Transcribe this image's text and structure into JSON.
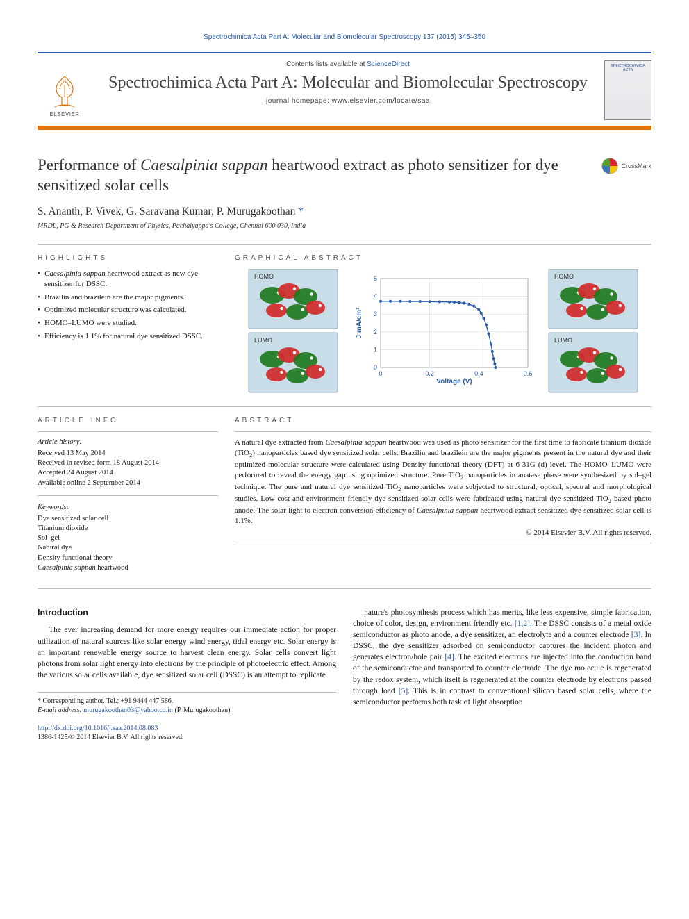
{
  "running_head": "Spectrochimica Acta Part A: Molecular and Biomolecular Spectroscopy 137 (2015) 345–350",
  "masthead": {
    "contents_prefix": "Contents lists available at ",
    "contents_link": "ScienceDirect",
    "journal_name": "Spectrochimica Acta Part A: Molecular and Biomolecular Spectroscopy",
    "homepage_label": "journal homepage: www.elsevier.com/locate/saa",
    "publisher_word": "ELSEVIER",
    "cover_label": "SPECTROCHIMICA ACTA"
  },
  "title_html": "Performance of <em>Caesalpinia sappan</em> heartwood extract as photo sensitizer for dye sensitized solar cells",
  "crossmark_label": "CrossMark",
  "authors_html": "S. Ananth, P. Vivek, G. Saravana Kumar, P. Murugakoothan <a href=\"#\">*</a>",
  "affiliation": "MRDL, PG & Research Department of Physics, Pachaiyappa's College, Chennai 600 030, India",
  "labels": {
    "highlights": "HIGHLIGHTS",
    "graphical_abstract": "GRAPHICAL ABSTRACT",
    "article_info": "ARTICLE INFO",
    "abstract": "ABSTRACT"
  },
  "highlights": [
    "<em>Caesalpinia sappan</em> heartwood extract as new dye sensitizer for DSSC.",
    "Brazilin and brazilein are the major pigments.",
    "Optimized molecular structure was calculated.",
    "HOMO–LUMO were studied.",
    "Efficiency is 1.1% for natural dye sensitized DSSC."
  ],
  "article_info": {
    "history_head": "Article history:",
    "received": "Received 13 May 2014",
    "revised": "Received in revised form 18 August 2014",
    "accepted": "Accepted 24 August 2014",
    "online": "Available online 2 September 2014",
    "keywords_head": "Keywords:",
    "keywords": [
      "Dye sensitized solar cell",
      "Titanium dioxide",
      "Sol–gel",
      "Natural dye",
      "Density functional theory",
      "<em>Caesalpinia sappan</em> heartwood"
    ]
  },
  "abstract_html": "A natural dye extracted from <em>Caesalpinia sappan</em> heartwood was used as photo sensitizer for the first time to fabricate titanium dioxide (TiO<span class=\"sub\">2</span>) nanoparticles based dye sensitized solar cells. Brazilin and brazilein are the major pigments present in the natural dye and their optimized molecular structure were calculated using Density functional theory (DFT) at 6-31G (d) level. The HOMO–LUMO were performed to reveal the energy gap using optimized structure. Pure TiO<span class=\"sub\">2</span> nanoparticles in anatase phase were synthesized by sol–gel technique. The pure and natural dye sensitized TiO<span class=\"sub\">2</span> nanoparticles were subjected to structural, optical, spectral and morphological studies. Low cost and environment friendly dye sensitized solar cells were fabricated using natural dye sensitized TiO<span class=\"sub\">2</span> based photo anode. The solar light to electron conversion efficiency of <em>Caesalpinia sappan</em> heartwood extract sensitized dye sensitized solar cell is 1.1%.",
  "copyright": "© 2014 Elsevier B.V. All rights reserved.",
  "intro_heading": "Introduction",
  "intro_col1": "The ever increasing demand for more energy requires our immediate action for proper utilization of natural sources like solar energy wind energy, tidal energy etc. Solar energy is an important renewable energy source to harvest clean energy. Solar cells convert light photons from solar light energy into electrons by the principle of photoelectric effect. Among the various solar cells available, dye sensitized solar cell (DSSC) is an attempt to replicate",
  "intro_col2_html": "nature's photosynthesis process which has merits, like less expensive, simple fabrication, choice of color, design, environment friendly etc. <span class=\"cite\">[1,2]</span>. The DSSC consists of a metal oxide semiconductor as photo anode, a dye sensitizer, an electrolyte and a counter electrode <span class=\"cite\">[3]</span>. In DSSC, the dye sensitizer adsorbed on semiconductor captures the incident photon and generates electron/hole pair <span class=\"cite\">[4]</span>. The excited electrons are injected into the conduction band of the semiconductor and transported to counter electrode. The dye molecule is regenerated by the redox system, which itself is regenerated at the counter electrode by electrons passed through load <span class=\"cite\">[5]</span>. This is in contrast to conventional silicon based solar cells, where the semiconductor performs both task of light absorption",
  "footnote": {
    "corr": "* Corresponding author. Tel.: +91 9444 447 586.",
    "email_label": "E-mail address:",
    "email": "murugakoothan03@yahoo.co.in",
    "email_tail": "(P. Murugakoothan)."
  },
  "footer": {
    "doi": "http://dx.doi.org/10.1016/j.saa.2014.08.083",
    "issn_line": "1386-1425/© 2014 Elsevier B.V. All rights reserved."
  },
  "graphical_abstract": {
    "panel_labels": [
      "HOMO",
      "HOMO",
      "LUMO",
      "LUMO"
    ],
    "orbital_colors": {
      "positive": "#d02a2a",
      "negative": "#1e7a1e",
      "atom_c": "#e0e0e0",
      "atom_h": "#ffffff",
      "atom_o": "#d34a4a",
      "bg": "#c9dde8"
    },
    "chart": {
      "type": "line",
      "xlabel": "Voltage (V)",
      "ylabel": "J mA/cm²",
      "label_color": "#2a5caa",
      "label_fontsize": 10,
      "xlim": [
        0,
        0.6
      ],
      "xtick_step": 0.2,
      "ylim": [
        0,
        5
      ],
      "ytick_step": 1,
      "grid_color": "#cfcfcf",
      "axis_color": "#666666",
      "marker": "circle",
      "marker_size": 4,
      "line_color": "#2a5caa",
      "data": [
        [
          0.0,
          3.72
        ],
        [
          0.04,
          3.72
        ],
        [
          0.08,
          3.72
        ],
        [
          0.12,
          3.71
        ],
        [
          0.16,
          3.71
        ],
        [
          0.2,
          3.7
        ],
        [
          0.24,
          3.69
        ],
        [
          0.28,
          3.68
        ],
        [
          0.3,
          3.67
        ],
        [
          0.32,
          3.65
        ],
        [
          0.34,
          3.62
        ],
        [
          0.36,
          3.56
        ],
        [
          0.38,
          3.45
        ],
        [
          0.4,
          3.25
        ],
        [
          0.41,
          3.05
        ],
        [
          0.42,
          2.78
        ],
        [
          0.43,
          2.4
        ],
        [
          0.44,
          1.9
        ],
        [
          0.45,
          1.3
        ],
        [
          0.455,
          0.9
        ],
        [
          0.46,
          0.5
        ],
        [
          0.465,
          0.2
        ],
        [
          0.468,
          0.0
        ]
      ]
    }
  },
  "colors": {
    "brand_blue": "#2a5caa",
    "brand_orange": "#e47200",
    "text": "#1a1a1a",
    "muted": "#555555",
    "rule": "#bdbdbd"
  }
}
